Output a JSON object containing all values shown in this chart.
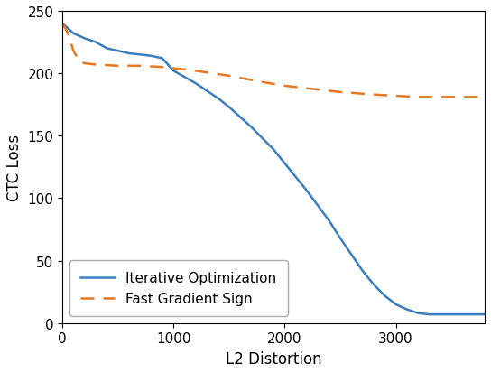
{
  "title": "",
  "xlabel": "L2 Distortion",
  "ylabel": "CTC Loss",
  "xlim": [
    0,
    3800
  ],
  "ylim": [
    0,
    250
  ],
  "yticks": [
    0,
    50,
    100,
    150,
    200,
    250
  ],
  "xticks": [
    0,
    1000,
    2000,
    3000
  ],
  "iterative_x": [
    0,
    100,
    200,
    300,
    400,
    500,
    600,
    700,
    800,
    900,
    1000,
    1100,
    1200,
    1300,
    1400,
    1500,
    1600,
    1700,
    1800,
    1900,
    2000,
    2100,
    2200,
    2300,
    2400,
    2500,
    2600,
    2700,
    2800,
    2900,
    3000,
    3100,
    3200,
    3300,
    3400,
    3500,
    3600,
    3700,
    3800
  ],
  "iterative_y": [
    240,
    232,
    228,
    225,
    220,
    218,
    216,
    215,
    214,
    212,
    202,
    197,
    192,
    186,
    180,
    173,
    165,
    157,
    148,
    139,
    128,
    117,
    106,
    94,
    82,
    68,
    55,
    42,
    31,
    22,
    15,
    11,
    8,
    7,
    7,
    7,
    7,
    7,
    7
  ],
  "fgs_x": [
    0,
    50,
    100,
    150,
    200,
    300,
    500,
    700,
    900,
    1000,
    1200,
    1500,
    1800,
    2000,
    2200,
    2500,
    2800,
    3000,
    3200,
    3500,
    3800
  ],
  "fgs_y": [
    240,
    232,
    218,
    210,
    208,
    207,
    206,
    206,
    205,
    204,
    202,
    198,
    193,
    190,
    188,
    185,
    183,
    182,
    181,
    181,
    181
  ],
  "iterative_color": "#3a7ebf",
  "fgs_color": "#e87722",
  "iterative_label": "Iterative Optimization",
  "fgs_label": "Fast Gradient Sign",
  "linewidth": 1.8,
  "legend_loc": "lower left",
  "figsize": [
    5.44,
    4.14
  ],
  "dpi": 100
}
